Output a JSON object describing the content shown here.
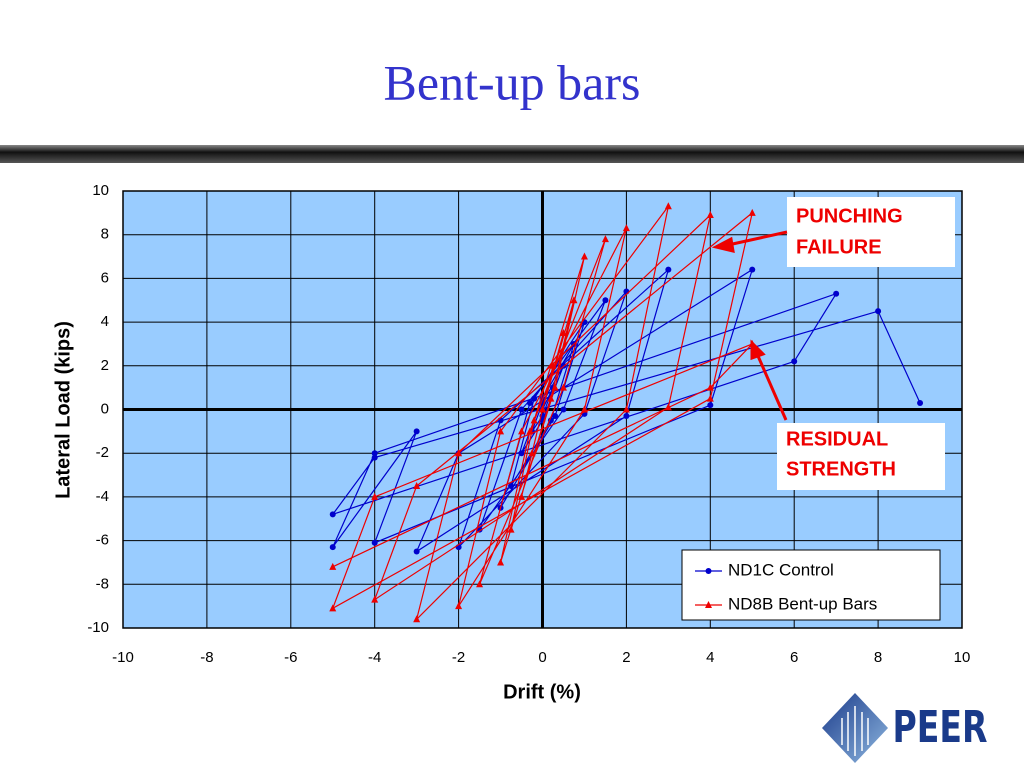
{
  "slide_title": "Bent-up bars",
  "logo": "PEER",
  "chart_data": {
    "type": "line",
    "x_label": "Drift (%)",
    "y_label": "Lateral Load (kips)",
    "xlim": [
      -10,
      10
    ],
    "ylim": [
      -10,
      10
    ],
    "xticks": [
      -10,
      -8,
      -6,
      -4,
      -2,
      0,
      2,
      4,
      6,
      8,
      10
    ],
    "yticks": [
      -10,
      -8,
      -6,
      -4,
      -2,
      0,
      2,
      4,
      6,
      8,
      10
    ],
    "grid": true,
    "legend": "lower right",
    "annotations": [
      {
        "lines": [
          "PUNCHING",
          "FAILURE"
        ]
      },
      {
        "lines": [
          "RESIDUAL",
          "STRENGTH"
        ]
      }
    ],
    "series": [
      {
        "name": "ND1C Control",
        "color": "#0000cc",
        "marker": "circle",
        "x": [
          0,
          0.25,
          0,
          -0.25,
          0,
          0.5,
          0,
          -0.5,
          0,
          0.75,
          0.2,
          -0.75,
          -0.2,
          1,
          0.3,
          -1,
          -0.3,
          1.5,
          0.5,
          -1.5,
          -0.5,
          2,
          1,
          -2,
          -1,
          3,
          2,
          -3,
          -2,
          5,
          4,
          -4,
          -3,
          -5,
          -4,
          7,
          6,
          -5,
          -4,
          8,
          9
        ],
        "values": [
          0,
          1,
          -0.3,
          -1,
          0.3,
          2,
          -0.5,
          -2,
          0.5,
          3,
          -0.5,
          -3.5,
          0.5,
          4,
          -0.3,
          -4.5,
          0.3,
          5,
          0,
          -5.5,
          0,
          5.4,
          -0.2,
          -6.3,
          -0.5,
          6.4,
          -0.3,
          -6.5,
          -2,
          6.4,
          0.2,
          -6.1,
          -1,
          -6.3,
          -2,
          5.3,
          2.2,
          -4.8,
          -2.2,
          4.5,
          0.3
        ]
      },
      {
        "name": "ND8B Bent-up Bars",
        "color": "#ee0000",
        "marker": "triangle",
        "x": [
          0,
          0.25,
          0,
          -0.25,
          0,
          0.5,
          0,
          -0.5,
          0,
          0.75,
          0.2,
          -0.75,
          -0.2,
          1,
          0.3,
          -1,
          -0.3,
          1.5,
          0.5,
          -1.5,
          -0.5,
          2,
          1,
          -2,
          -1,
          3,
          2,
          -3,
          -2,
          4,
          3,
          -4,
          -3,
          5,
          4,
          -5,
          -4,
          5,
          4,
          -5
        ],
        "values": [
          0,
          2,
          0,
          -2,
          0,
          3.5,
          0,
          -4,
          0,
          5,
          0.5,
          -5.5,
          -0.5,
          7,
          1,
          -7,
          -1,
          7.8,
          1,
          -8,
          -1,
          8.3,
          0,
          -9,
          -1,
          9.3,
          0,
          -9.6,
          -2,
          8.9,
          0.1,
          -8.7,
          -3.5,
          9,
          0.5,
          -9.1,
          -4,
          3,
          1,
          -7.2
        ]
      }
    ]
  }
}
